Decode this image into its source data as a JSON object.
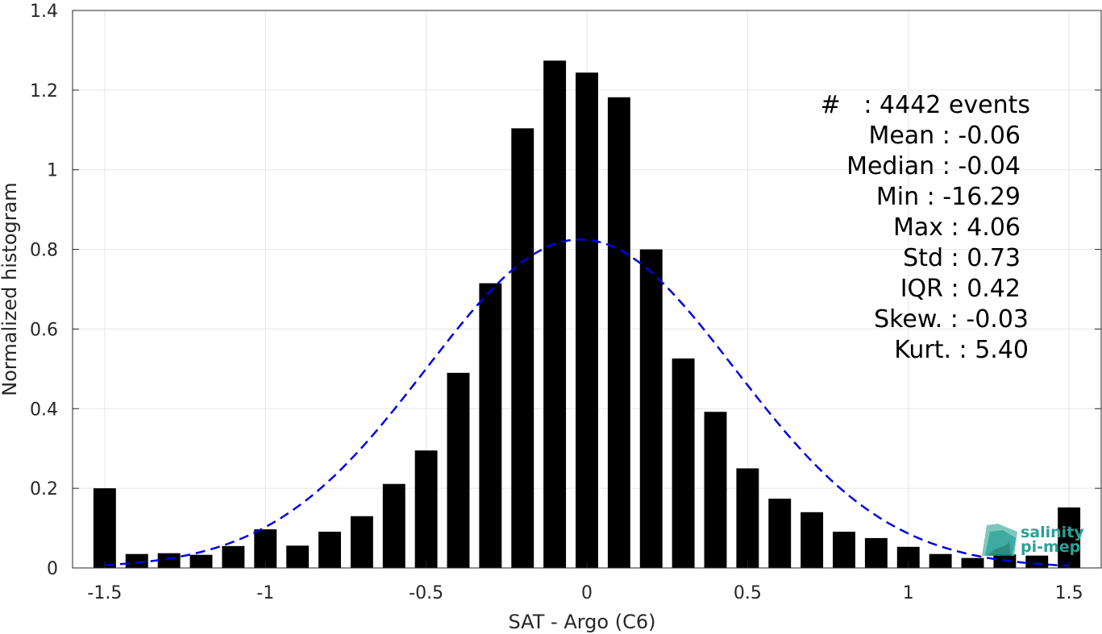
{
  "chart_data": {
    "type": "bar",
    "xlabel": "SAT - Argo (C6)",
    "ylabel": "Normalized histogram",
    "xlim": [
      -1.6,
      1.6
    ],
    "ylim": [
      0,
      1.4
    ],
    "xticks": [
      -1.5,
      -1,
      -0.5,
      0,
      0.5,
      1,
      1.5
    ],
    "xtick_labels": [
      "-1.5",
      "-1",
      "-0.5",
      "0",
      "0.5",
      "1",
      "1.5"
    ],
    "yticks": [
      0,
      0.2,
      0.4,
      0.6,
      0.8,
      1,
      1.2,
      1.4
    ],
    "ytick_labels": [
      "0",
      "0.2",
      "0.4",
      "0.6",
      "0.8",
      "1",
      "1.2",
      "1.4"
    ],
    "grid": true,
    "bar_color": "#000000",
    "fit_color": "#0000e6",
    "bin_width": 0.1,
    "x": [
      -1.5,
      -1.4,
      -1.3,
      -1.2,
      -1.1,
      -1.0,
      -0.9,
      -0.8,
      -0.7,
      -0.6,
      -0.5,
      -0.4,
      -0.3,
      -0.2,
      -0.1,
      0.0,
      0.1,
      0.2,
      0.3,
      0.4,
      0.5,
      0.6,
      0.7,
      0.8,
      0.9,
      1.0,
      1.1,
      1.2,
      1.3,
      1.4,
      1.5
    ],
    "values": [
      0.2,
      0.035,
      0.037,
      0.033,
      0.055,
      0.097,
      0.056,
      0.091,
      0.13,
      0.211,
      0.295,
      0.49,
      0.715,
      1.104,
      1.274,
      1.244,
      1.182,
      0.8,
      0.526,
      0.392,
      0.25,
      0.174,
      0.14,
      0.091,
      0.075,
      0.053,
      0.035,
      0.025,
      0.034,
      0.031,
      0.152
    ],
    "fit": {
      "type": "gaussian",
      "mean": -0.02,
      "std": 0.48,
      "peak": 0.825,
      "x_range": [
        -1.5,
        1.5
      ]
    }
  },
  "stats": {
    "lines": [
      "#   : 4442 events",
      "Mean : -0.06",
      "Median : -0.04",
      "Min : -16.29",
      "Max : 4.06",
      "Std : 0.73",
      "IQR : 0.42",
      "Skew. : -0.03",
      "Kurt. : 5.40"
    ]
  },
  "logo": {
    "line1": "salinity",
    "line2": "pi-mep",
    "color": "#2aa198"
  }
}
